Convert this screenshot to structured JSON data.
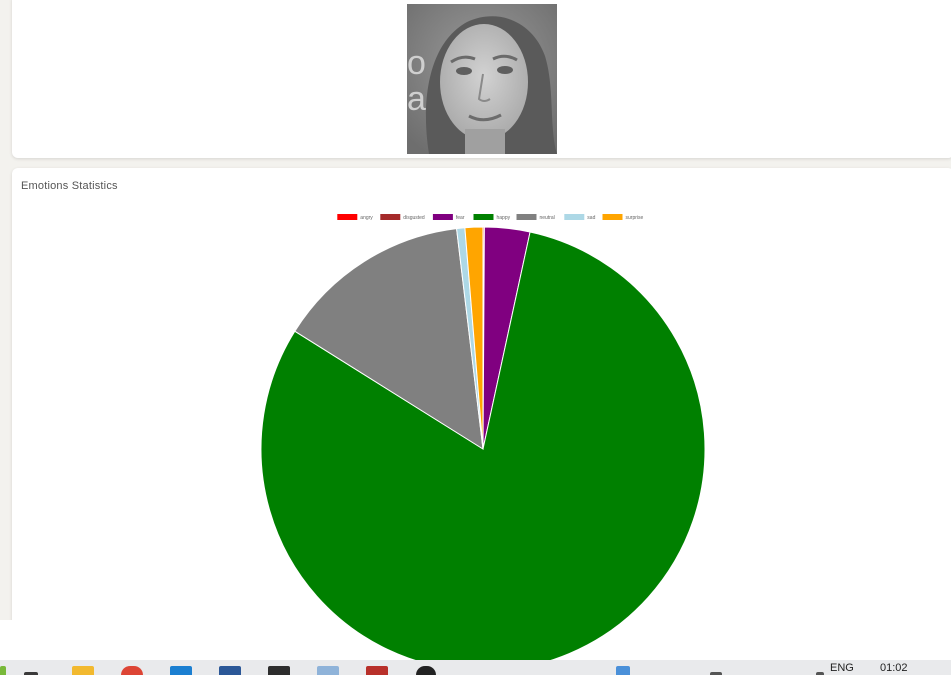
{
  "photo": {
    "alt": "face"
  },
  "stats": {
    "title": "Emotions Statistics"
  },
  "chart_data": {
    "type": "pie",
    "title": "",
    "legend_position": "top",
    "categories": [
      "angry",
      "disgusted",
      "fear",
      "happy",
      "neutral",
      "sad",
      "surprise"
    ],
    "values": [
      0.1,
      0.0,
      3.3,
      80.5,
      14.2,
      0.6,
      1.3
    ],
    "colors": [
      "#ff0000",
      "#a52a2a",
      "#800080",
      "#008000",
      "#808080",
      "#add8e6",
      "#ffa500"
    ]
  },
  "taskbar": {
    "language": "ENG",
    "time": "01:02",
    "icons": [
      "task-view-icon",
      "file-explorer-icon",
      "chrome-icon",
      "vscode-icon",
      "word-icon",
      "terminal-icon",
      "notepad-icon",
      "gmail-icon",
      "obs-icon",
      "network-icon",
      "volume-icon"
    ]
  }
}
